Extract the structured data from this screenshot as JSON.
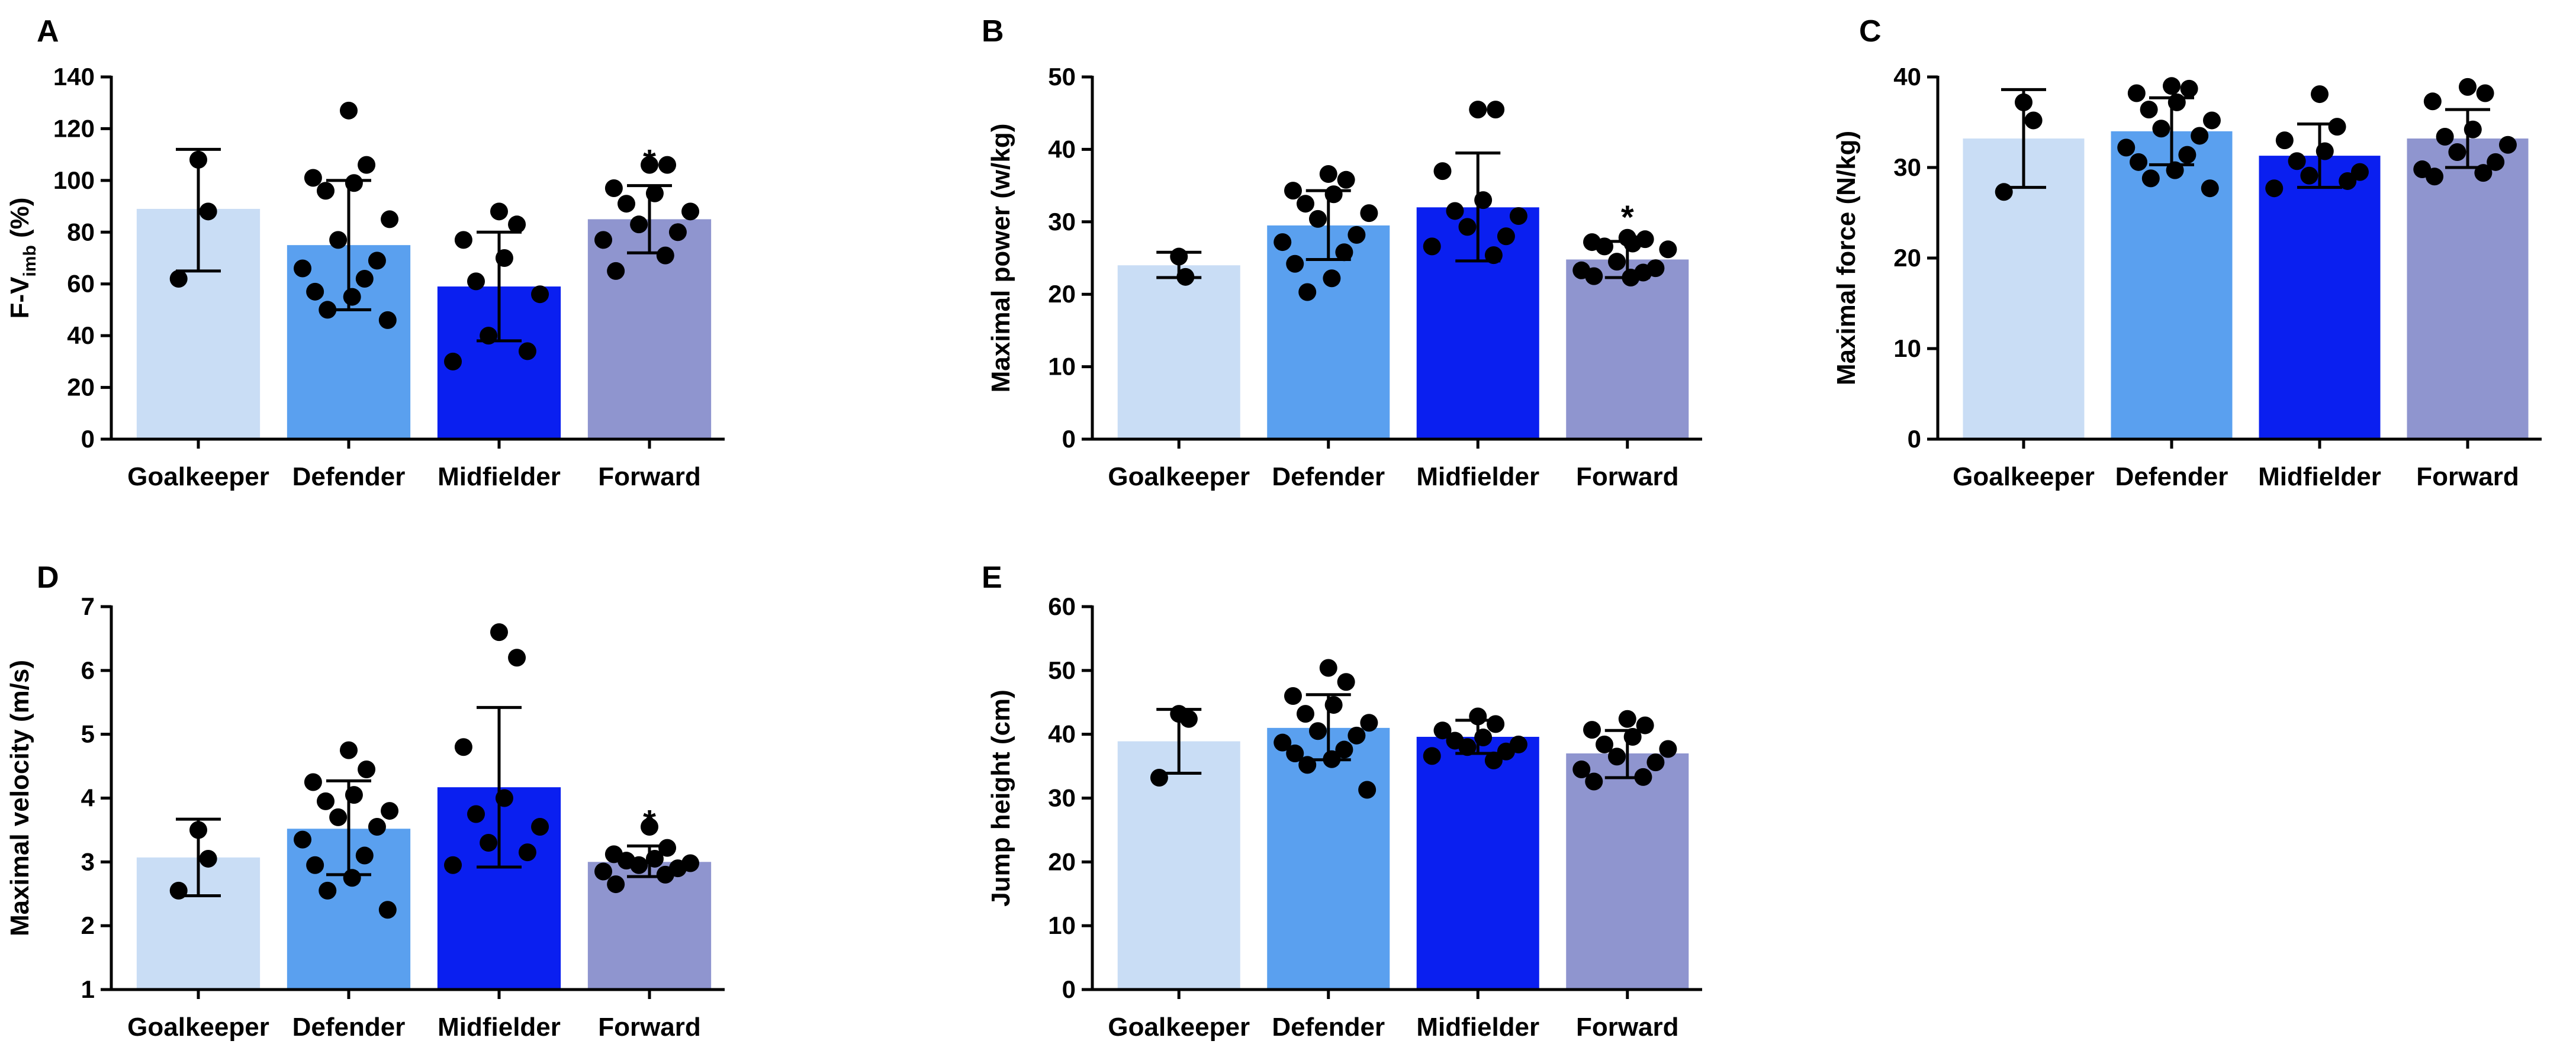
{
  "chart_data": [
    {
      "panel": "A",
      "type": "bar",
      "ylabel": {
        "pre": "F-V",
        "sub": "imb",
        "post": " (%)"
      },
      "ylim": [
        0,
        140
      ],
      "yticks": [
        0,
        20,
        40,
        60,
        80,
        100,
        120,
        140
      ],
      "categories": [
        "Goalkeeper",
        "Defender",
        "Midfielder",
        "Forward"
      ],
      "colors": [
        "#c9ddf5",
        "#5aa0ef",
        "#0a1ff0",
        "#8f95cf"
      ],
      "values": [
        89,
        75,
        59,
        85
      ],
      "errors": [
        [
          65,
          112
        ],
        [
          50,
          100
        ],
        [
          38,
          80
        ],
        [
          72,
          98
        ]
      ],
      "significance": [
        "",
        "",
        "",
        "*"
      ],
      "points": [
        [
          108,
          88,
          62
        ],
        [
          127,
          106,
          101,
          99,
          96,
          85,
          77,
          69,
          66,
          62,
          57,
          55,
          50,
          46
        ],
        [
          88,
          83,
          77,
          70,
          61,
          56,
          40,
          34,
          30
        ],
        [
          106,
          106,
          97,
          95,
          91,
          88,
          83,
          80,
          77,
          71,
          65
        ]
      ]
    },
    {
      "panel": "B",
      "type": "bar",
      "ylabel": {
        "pre": "Maximal power (w/kg)",
        "sub": "",
        "post": ""
      },
      "ylim": [
        0,
        50
      ],
      "yticks": [
        0,
        10,
        20,
        30,
        40,
        50
      ],
      "categories": [
        "Goalkeeper",
        "Defender",
        "Midfielder",
        "Forward"
      ],
      "colors": [
        "#c9ddf5",
        "#5aa0ef",
        "#0a1ff0",
        "#8f95cf"
      ],
      "values": [
        24,
        29.5,
        32,
        24.8
      ],
      "errors": [
        [
          22.3,
          25.8
        ],
        [
          24.8,
          34.3
        ],
        [
          24.6,
          39.5
        ],
        [
          22.3,
          27.3
        ]
      ],
      "significance": [
        "",
        "",
        "",
        "*"
      ],
      "points": [
        [
          25.2,
          22.4
        ],
        [
          36.6,
          35.8,
          34.3,
          33.8,
          32.5,
          31.2,
          30.4,
          28.2,
          27.2,
          25.8,
          24.2,
          22.2,
          20.3
        ],
        [
          45.5,
          45.5,
          37,
          33,
          31.5,
          30.8,
          29.3,
          28,
          26.6,
          25.4
        ],
        [
          27.8,
          27.6,
          27.2,
          27,
          26.6,
          26.2,
          24.5,
          23.6,
          23.3,
          23,
          22.5,
          22.3
        ]
      ]
    },
    {
      "panel": "C",
      "type": "bar",
      "ylabel": {
        "pre": "Maximal force (N/kg)",
        "sub": "",
        "post": ""
      },
      "ylim": [
        0,
        40
      ],
      "yticks": [
        0,
        10,
        20,
        30,
        40
      ],
      "categories": [
        "Goalkeeper",
        "Defender",
        "Midfielder",
        "Forward"
      ],
      "colors": [
        "#c9ddf5",
        "#5aa0ef",
        "#0a1ff0",
        "#8f95cf"
      ],
      "values": [
        33.2,
        34,
        31.3,
        33.2
      ],
      "errors": [
        [
          27.8,
          38.6
        ],
        [
          30.3,
          37.7
        ],
        [
          27.8,
          34.8
        ],
        [
          30,
          36.4
        ]
      ],
      "significance": [
        "",
        "",
        "",
        ""
      ],
      "points": [
        [
          37.2,
          35.2,
          27.3
        ],
        [
          39,
          38.7,
          38.2,
          37.2,
          36.4,
          35.2,
          34.3,
          33.5,
          32.2,
          31.4,
          30.6,
          29.7,
          28.8,
          27.7
        ],
        [
          38.1,
          34.5,
          33,
          31.8,
          30.7,
          29.5,
          29.1,
          28.5,
          27.7
        ],
        [
          38.9,
          38.2,
          37.3,
          34.2,
          33.4,
          32.5,
          31.7,
          30.6,
          29.8,
          29.4,
          29
        ]
      ]
    },
    {
      "panel": "D",
      "type": "bar",
      "ylabel": {
        "pre": "Maximal velocity (m/s)",
        "sub": "",
        "post": ""
      },
      "ylim": [
        1,
        7
      ],
      "yticks": [
        1,
        2,
        3,
        4,
        5,
        6,
        7
      ],
      "categories": [
        "Goalkeeper",
        "Defender",
        "Midfielder",
        "Forward"
      ],
      "colors": [
        "#c9ddf5",
        "#5aa0ef",
        "#0a1ff0",
        "#8f95cf"
      ],
      "values": [
        3.07,
        3.52,
        4.17,
        3.0
      ],
      "errors": [
        [
          2.47,
          3.67
        ],
        [
          2.8,
          4.27
        ],
        [
          2.92,
          5.42
        ],
        [
          2.77,
          3.25
        ]
      ],
      "significance": [
        "",
        "",
        "",
        "*"
      ],
      "points": [
        [
          3.5,
          3.05,
          2.55
        ],
        [
          4.75,
          4.45,
          4.25,
          4.05,
          3.95,
          3.8,
          3.7,
          3.55,
          3.35,
          3.1,
          2.95,
          2.75,
          2.55,
          2.25
        ],
        [
          6.6,
          6.2,
          4.8,
          4.0,
          3.75,
          3.55,
          3.3,
          3.15,
          2.95
        ],
        [
          3.55,
          3.22,
          3.12,
          3.05,
          3.02,
          2.98,
          2.95,
          2.9,
          2.85,
          2.8,
          2.65
        ]
      ]
    },
    {
      "panel": "E",
      "type": "bar",
      "ylabel": {
        "pre": "Jump height (cm)",
        "sub": "",
        "post": ""
      },
      "ylim": [
        0,
        60
      ],
      "yticks": [
        0,
        10,
        20,
        30,
        40,
        50,
        60
      ],
      "categories": [
        "Goalkeeper",
        "Defender",
        "Midfielder",
        "Forward"
      ],
      "colors": [
        "#c9ddf5",
        "#5aa0ef",
        "#0a1ff0",
        "#8f95cf"
      ],
      "values": [
        38.9,
        41,
        39.6,
        37
      ],
      "errors": [
        [
          33.9,
          43.9
        ],
        [
          36,
          46.2
        ],
        [
          37,
          42.2
        ],
        [
          33.2,
          40.6
        ]
      ],
      "significance": [
        "",
        "",
        "",
        ""
      ],
      "points": [
        [
          43.2,
          42.4,
          33.2
        ],
        [
          50.4,
          48.2,
          46,
          44.6,
          43.2,
          41.8,
          40.5,
          39.8,
          38.7,
          37.6,
          37,
          36.1,
          35.2,
          31.3
        ],
        [
          42.8,
          41.6,
          40.6,
          39.5,
          39,
          38.4,
          38,
          37.3,
          36.6,
          35.9
        ],
        [
          42.4,
          41.4,
          40.7,
          39.6,
          38.4,
          37.7,
          36.5,
          35.6,
          34.5,
          33.3,
          32.6
        ]
      ]
    }
  ]
}
